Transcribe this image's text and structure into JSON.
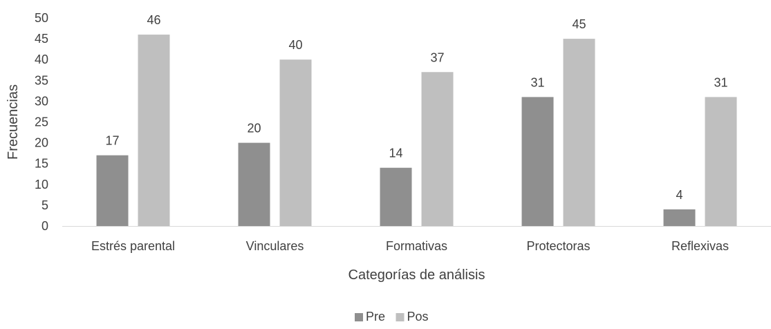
{
  "chart_data": {
    "type": "bar",
    "title": "",
    "xlabel": "Categorías de análisis",
    "ylabel": "Frecuencias",
    "categories": [
      "Estrés parental",
      "Vinculares",
      "Formativas",
      "Protectoras",
      "Reflexivas"
    ],
    "series": [
      {
        "name": "Pre",
        "color": "#8f8f8f",
        "values": [
          17,
          20,
          14,
          31,
          4
        ]
      },
      {
        "name": "Pos",
        "color": "#bfbfbf",
        "values": [
          46,
          40,
          37,
          45,
          31
        ]
      }
    ],
    "ylim": [
      0,
      50
    ],
    "yticks": [
      0,
      5,
      10,
      15,
      20,
      25,
      30,
      35,
      40,
      45,
      50
    ],
    "grid": false,
    "legend_position": "bottom",
    "data_labels": true
  }
}
